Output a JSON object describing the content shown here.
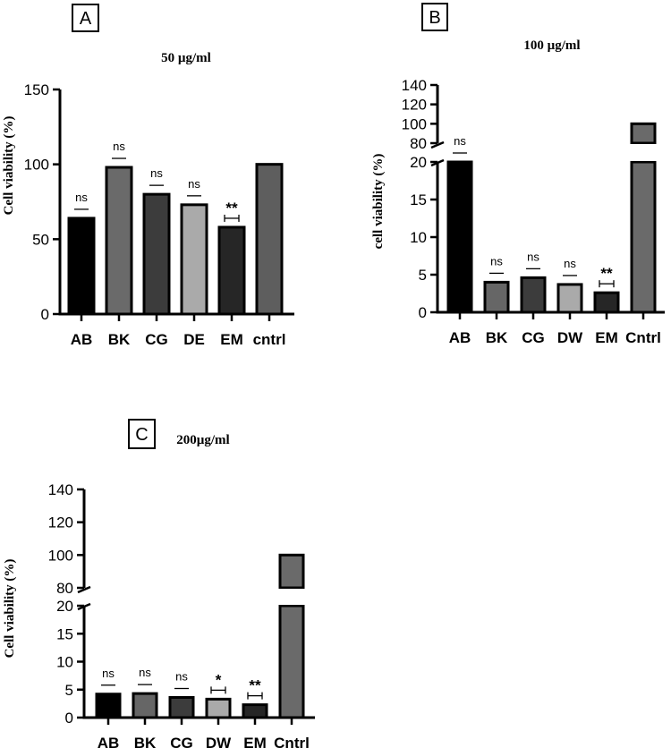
{
  "chart_data": [
    {
      "type": "bar",
      "panel": "A",
      "title": "50 µg/ml",
      "ylabel": "Cell viability (%)",
      "categories": [
        "AB",
        "BK",
        "CG",
        "DE",
        "EM",
        "cntrl"
      ],
      "values": [
        64,
        98,
        80,
        73,
        58,
        100
      ],
      "significance": [
        "ns",
        "ns",
        "ns",
        "ns",
        "**",
        ""
      ],
      "bar_colors": [
        "#000000",
        "#6a6a6a",
        "#3c3c3c",
        "#aaaaaa",
        "#262626",
        "#5e5e5e"
      ],
      "ylim": [
        0,
        150
      ],
      "yticks": [
        "0",
        "50",
        "100",
        "150"
      ],
      "broken_axis": false
    },
    {
      "type": "bar",
      "panel": "B",
      "title": "100 µg/ml",
      "ylabel": "cell viability (%)",
      "categories": [
        "AB",
        "BK",
        "CG",
        "DW",
        "EM",
        "Cntrl"
      ],
      "values": [
        20,
        4,
        4.6,
        3.7,
        2.6,
        100
      ],
      "significance": [
        "ns",
        "ns",
        "ns",
        "ns",
        "**",
        ""
      ],
      "bar_colors": [
        "#000000",
        "#666666",
        "#3c3c3c",
        "#aaaaaa",
        "#262626",
        "#6a6a6a"
      ],
      "lower_ylim": [
        0,
        20
      ],
      "lower_yticks": [
        "0",
        "5",
        "10",
        "15",
        "20"
      ],
      "upper_ylim": [
        80,
        140
      ],
      "upper_yticks": [
        "80",
        "100",
        "120",
        "140"
      ],
      "broken_axis": true
    },
    {
      "type": "bar",
      "panel": "C",
      "title": "200µg/ml",
      "ylabel": "Cell viability (%)",
      "categories": [
        "AB",
        "BK",
        "CG",
        "DW",
        "EM",
        "Cntrl"
      ],
      "values": [
        4.2,
        4.3,
        3.6,
        3.3,
        2.3,
        100
      ],
      "significance": [
        "ns",
        "ns",
        "ns",
        "*",
        "**",
        ""
      ],
      "bar_colors": [
        "#000000",
        "#666666",
        "#3c3c3c",
        "#aaaaaa",
        "#262626",
        "#6a6a6a"
      ],
      "lower_ylim": [
        0,
        20
      ],
      "lower_yticks": [
        "0",
        "5",
        "10",
        "15",
        "20"
      ],
      "upper_ylim": [
        80,
        140
      ],
      "upper_yticks": [
        "80",
        "100",
        "120",
        "140"
      ],
      "broken_axis": true
    }
  ]
}
